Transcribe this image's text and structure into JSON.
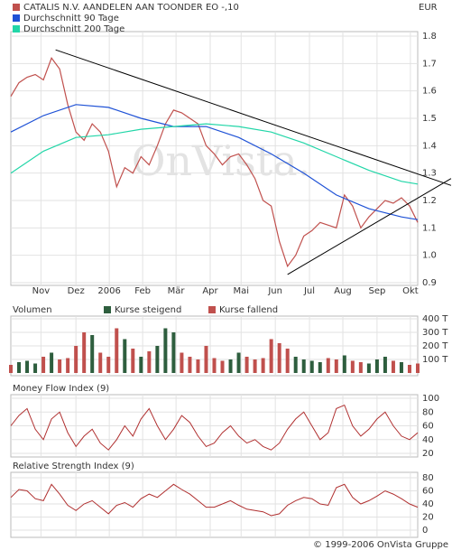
{
  "currency": "EUR",
  "copyright": "© 1999-2006 OnVista Gruppe",
  "chart_data": [
    {
      "type": "line",
      "watermark": "OnVista.",
      "xlim": [
        0,
        50
      ],
      "ylim": [
        0.9,
        1.8
      ],
      "yticks": [
        1.8,
        1.7,
        1.6,
        1.5,
        1.4,
        1.3,
        1.2,
        1.1,
        {
          "value": 1,
          "label": "1.0"
        },
        0.9
      ],
      "xticks": [
        {
          "value": 3.7,
          "label": "Nov"
        },
        {
          "value": 8.0,
          "label": "Dez"
        },
        {
          "value": 12.1,
          "label": "2006"
        },
        {
          "value": 16.2,
          "label": "Feb"
        },
        {
          "value": 20.3,
          "label": "Mär"
        },
        {
          "value": 24.5,
          "label": "Apr"
        },
        {
          "value": 28.3,
          "label": "Mai"
        },
        {
          "value": 32.5,
          "label": "Jun"
        },
        {
          "value": 36.7,
          "label": "Jul"
        },
        {
          "value": 40.8,
          "label": "Aug"
        },
        {
          "value": 45.0,
          "label": "Sep"
        },
        {
          "value": 49.1,
          "label": "Okt"
        }
      ],
      "grid": true,
      "series": [
        {
          "name": "CATALIS N.V. AANDELEN AAN TOONDER EO -,10",
          "color": "#c0504d",
          "x": [
            0,
            1,
            2,
            3,
            4,
            5,
            6,
            7,
            8,
            9,
            10,
            11,
            12,
            13,
            14,
            15,
            16,
            17,
            18,
            19,
            20,
            21,
            22,
            23,
            24,
            25,
            26,
            27,
            28,
            29,
            30,
            31,
            32,
            33,
            34,
            35,
            36,
            37,
            38,
            39,
            40,
            41,
            42,
            43,
            44,
            45,
            46,
            47,
            48,
            49,
            50
          ],
          "values": [
            1.58,
            1.63,
            1.65,
            1.66,
            1.64,
            1.72,
            1.68,
            1.55,
            1.45,
            1.42,
            1.48,
            1.45,
            1.38,
            1.25,
            1.32,
            1.3,
            1.36,
            1.33,
            1.4,
            1.48,
            1.53,
            1.52,
            1.5,
            1.48,
            1.4,
            1.37,
            1.33,
            1.36,
            1.37,
            1.33,
            1.28,
            1.2,
            1.18,
            1.05,
            0.96,
            1.0,
            1.07,
            1.09,
            1.12,
            1.11,
            1.1,
            1.22,
            1.18,
            1.1,
            1.14,
            1.17,
            1.2,
            1.19,
            1.21,
            1.18,
            1.12
          ]
        },
        {
          "name": "Durchschnitt 90 Tage",
          "color": "#1f52d6",
          "x": [
            0,
            4,
            8,
            12,
            16,
            20,
            24,
            28,
            32,
            36,
            40,
            44,
            48,
            50
          ],
          "values": [
            1.45,
            1.51,
            1.55,
            1.54,
            1.5,
            1.47,
            1.47,
            1.43,
            1.37,
            1.3,
            1.22,
            1.17,
            1.14,
            1.13
          ]
        },
        {
          "name": "Durchschnitt 200 Tage",
          "color": "#22d6a8",
          "x": [
            0,
            4,
            8,
            12,
            16,
            20,
            24,
            28,
            32,
            36,
            40,
            44,
            48,
            50
          ],
          "values": [
            1.3,
            1.38,
            1.43,
            1.44,
            1.46,
            1.47,
            1.48,
            1.47,
            1.45,
            1.41,
            1.36,
            1.31,
            1.27,
            1.26
          ]
        }
      ],
      "trendlines": [
        {
          "x": [
            5.5,
            54.1
          ],
          "values": [
            1.75,
            1.255
          ]
        },
        {
          "x": [
            34,
            54.1
          ],
          "values": [
            0.93,
            1.28
          ]
        }
      ]
    },
    {
      "type": "bar",
      "title": "Volumen",
      "xlim": [
        0,
        50
      ],
      "ylim": [
        0,
        400
      ],
      "yticks": [
        {
          "value": 400,
          "label": "400 T"
        },
        {
          "value": 300,
          "label": "300 T"
        },
        {
          "value": 200,
          "label": "200 T"
        },
        {
          "value": 100,
          "label": "100 T"
        }
      ],
      "grid": true,
      "x": [
        0,
        1,
        2,
        3,
        4,
        5,
        6,
        7,
        8,
        9,
        10,
        11,
        12,
        13,
        14,
        15,
        16,
        17,
        18,
        19,
        20,
        21,
        22,
        23,
        24,
        25,
        26,
        27,
        28,
        29,
        30,
        31,
        32,
        33,
        34,
        35,
        36,
        37,
        38,
        39,
        40,
        41,
        42,
        43,
        44,
        45,
        46,
        47,
        48,
        49,
        50
      ],
      "series": [
        {
          "name": "Kurse steigend",
          "color": "#2e5e3e",
          "values": [
            null,
            80,
            90,
            70,
            null,
            150,
            null,
            null,
            null,
            null,
            280,
            null,
            null,
            null,
            250,
            null,
            120,
            null,
            200,
            330,
            300,
            null,
            null,
            null,
            null,
            null,
            null,
            100,
            150,
            null,
            null,
            null,
            null,
            null,
            null,
            120,
            100,
            90,
            80,
            null,
            null,
            130,
            null,
            null,
            70,
            100,
            120,
            null,
            80,
            null,
            null
          ]
        },
        {
          "name": "Kurse fallend",
          "color": "#c0504d",
          "values": [
            60,
            null,
            null,
            null,
            120,
            null,
            100,
            110,
            200,
            300,
            null,
            150,
            120,
            330,
            null,
            180,
            null,
            160,
            null,
            null,
            null,
            150,
            120,
            100,
            200,
            110,
            90,
            null,
            null,
            120,
            100,
            110,
            250,
            220,
            180,
            null,
            null,
            null,
            null,
            110,
            100,
            null,
            90,
            80,
            null,
            null,
            null,
            90,
            null,
            60,
            70
          ]
        }
      ]
    },
    {
      "type": "line",
      "title": "Money Flow Index (9)",
      "xlim": [
        0,
        50
      ],
      "ylim": [
        20,
        100
      ],
      "yticks": [
        100,
        80,
        60,
        40,
        20
      ],
      "grid": true,
      "series": [
        {
          "color": "#b03030",
          "x": [
            0,
            1,
            2,
            3,
            4,
            5,
            6,
            7,
            8,
            9,
            10,
            11,
            12,
            13,
            14,
            15,
            16,
            17,
            18,
            19,
            20,
            21,
            22,
            23,
            24,
            25,
            26,
            27,
            28,
            29,
            30,
            31,
            32,
            33,
            34,
            35,
            36,
            37,
            38,
            39,
            40,
            41,
            42,
            43,
            44,
            45,
            46,
            47,
            48,
            49,
            50
          ],
          "values": [
            60,
            75,
            85,
            55,
            40,
            70,
            80,
            50,
            30,
            45,
            55,
            35,
            25,
            40,
            60,
            45,
            70,
            85,
            60,
            40,
            55,
            75,
            65,
            45,
            30,
            35,
            50,
            60,
            45,
            35,
            40,
            30,
            25,
            35,
            55,
            70,
            80,
            60,
            40,
            50,
            85,
            90,
            60,
            45,
            55,
            70,
            80,
            60,
            45,
            40,
            50
          ]
        }
      ]
    },
    {
      "type": "line",
      "title": "Relative Strength Index (9)",
      "xlim": [
        0,
        50
      ],
      "ylim": [
        0,
        80
      ],
      "yticks": [
        80,
        60,
        40,
        20,
        0
      ],
      "grid": true,
      "series": [
        {
          "color": "#b03030",
          "x": [
            0,
            1,
            2,
            3,
            4,
            5,
            6,
            7,
            8,
            9,
            10,
            11,
            12,
            13,
            14,
            15,
            16,
            17,
            18,
            19,
            20,
            21,
            22,
            23,
            24,
            25,
            26,
            27,
            28,
            29,
            30,
            31,
            32,
            33,
            34,
            35,
            36,
            37,
            38,
            39,
            40,
            41,
            42,
            43,
            44,
            45,
            46,
            47,
            48,
            49,
            50
          ],
          "values": [
            50,
            62,
            60,
            48,
            45,
            70,
            55,
            38,
            30,
            40,
            45,
            35,
            25,
            38,
            42,
            35,
            48,
            55,
            50,
            60,
            70,
            62,
            55,
            45,
            35,
            35,
            40,
            45,
            38,
            32,
            30,
            28,
            22,
            25,
            38,
            45,
            50,
            48,
            40,
            38,
            65,
            70,
            50,
            40,
            45,
            52,
            60,
            55,
            48,
            40,
            35
          ]
        }
      ]
    }
  ]
}
